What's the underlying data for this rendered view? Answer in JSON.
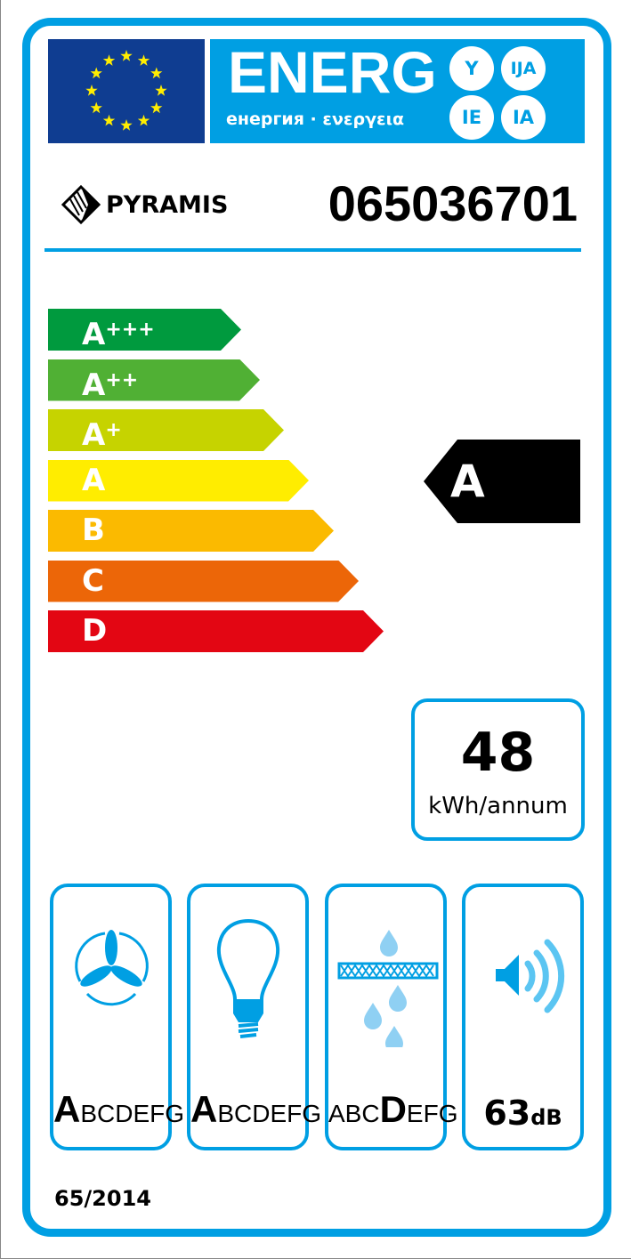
{
  "header": {
    "title": "ENERG",
    "subtitle": "енергия · ενεργεια",
    "suffixes": [
      "Y",
      "IJA",
      "IE",
      "IA"
    ]
  },
  "brand": {
    "name": "PYRAMIS",
    "model": "065036701"
  },
  "scale": [
    {
      "label": "A",
      "sup": "+++",
      "color": "#009a3e"
    },
    {
      "label": "A",
      "sup": "++",
      "color": "#50b034"
    },
    {
      "label": "A",
      "sup": "+",
      "color": "#c6d300"
    },
    {
      "label": "A",
      "sup": "",
      "color": "#ffed00"
    },
    {
      "label": "B",
      "sup": "",
      "color": "#fbba00"
    },
    {
      "label": "C",
      "sup": "",
      "color": "#ec6608"
    },
    {
      "label": "D",
      "sup": "",
      "color": "#e30613"
    }
  ],
  "rating": {
    "class": "A"
  },
  "consumption": {
    "value": "48",
    "unit": "kWh/annum"
  },
  "icons": [
    {
      "icon": "fan-icon",
      "pre": "",
      "hi": "A",
      "post": "BCDEFG"
    },
    {
      "icon": "light-bulb-icon",
      "pre": "",
      "hi": "A",
      "post": "BCDEFG"
    },
    {
      "icon": "grease-filter-icon",
      "pre": "ABC",
      "hi": "D",
      "post": "EFG"
    },
    {
      "icon": "speaker-icon",
      "value": "63",
      "unit": "dB"
    }
  ],
  "regulation": "65/2014",
  "colors": {
    "accent": "#009fe3",
    "eu_blue": "#0f3d91",
    "star": "#ffed00"
  }
}
